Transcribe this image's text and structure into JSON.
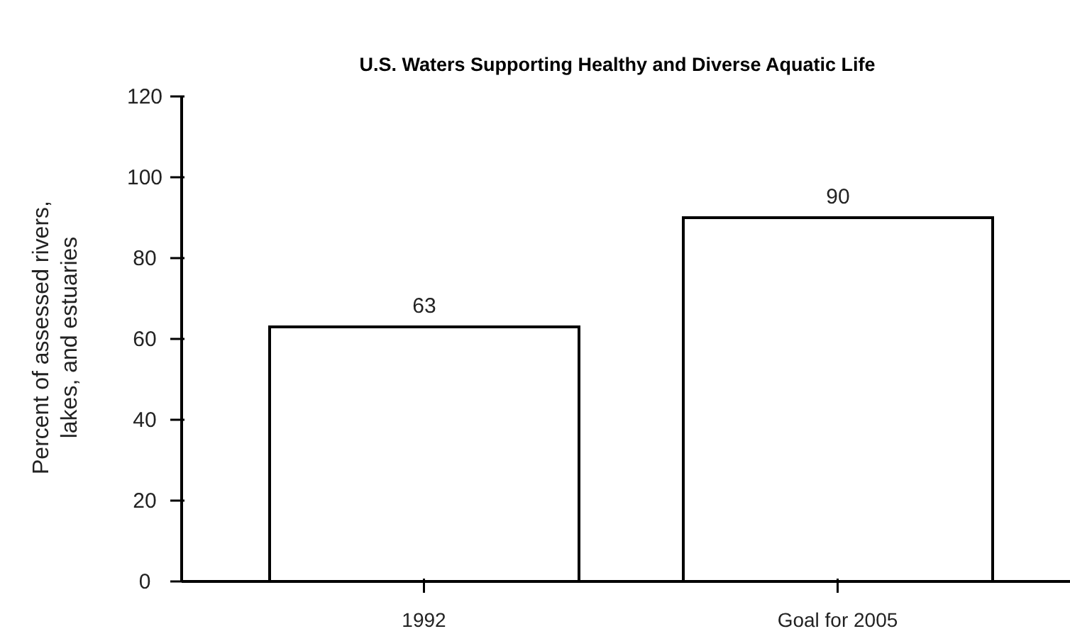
{
  "chart_data": {
    "type": "bar",
    "title": "U.S. Waters Supporting Healthy and Diverse Aquatic Life",
    "ylabel": "Percent of assessed rivers, lakes, and estuaries",
    "categories": [
      "1992",
      "Goal for 2005"
    ],
    "values": [
      63,
      90
    ],
    "color": "#ffffff",
    "ylim": [
      0,
      120
    ],
    "yticks": [
      0,
      20,
      40,
      60,
      80,
      100,
      120
    ],
    "data_labels": true,
    "grid": false,
    "legend": false
  }
}
